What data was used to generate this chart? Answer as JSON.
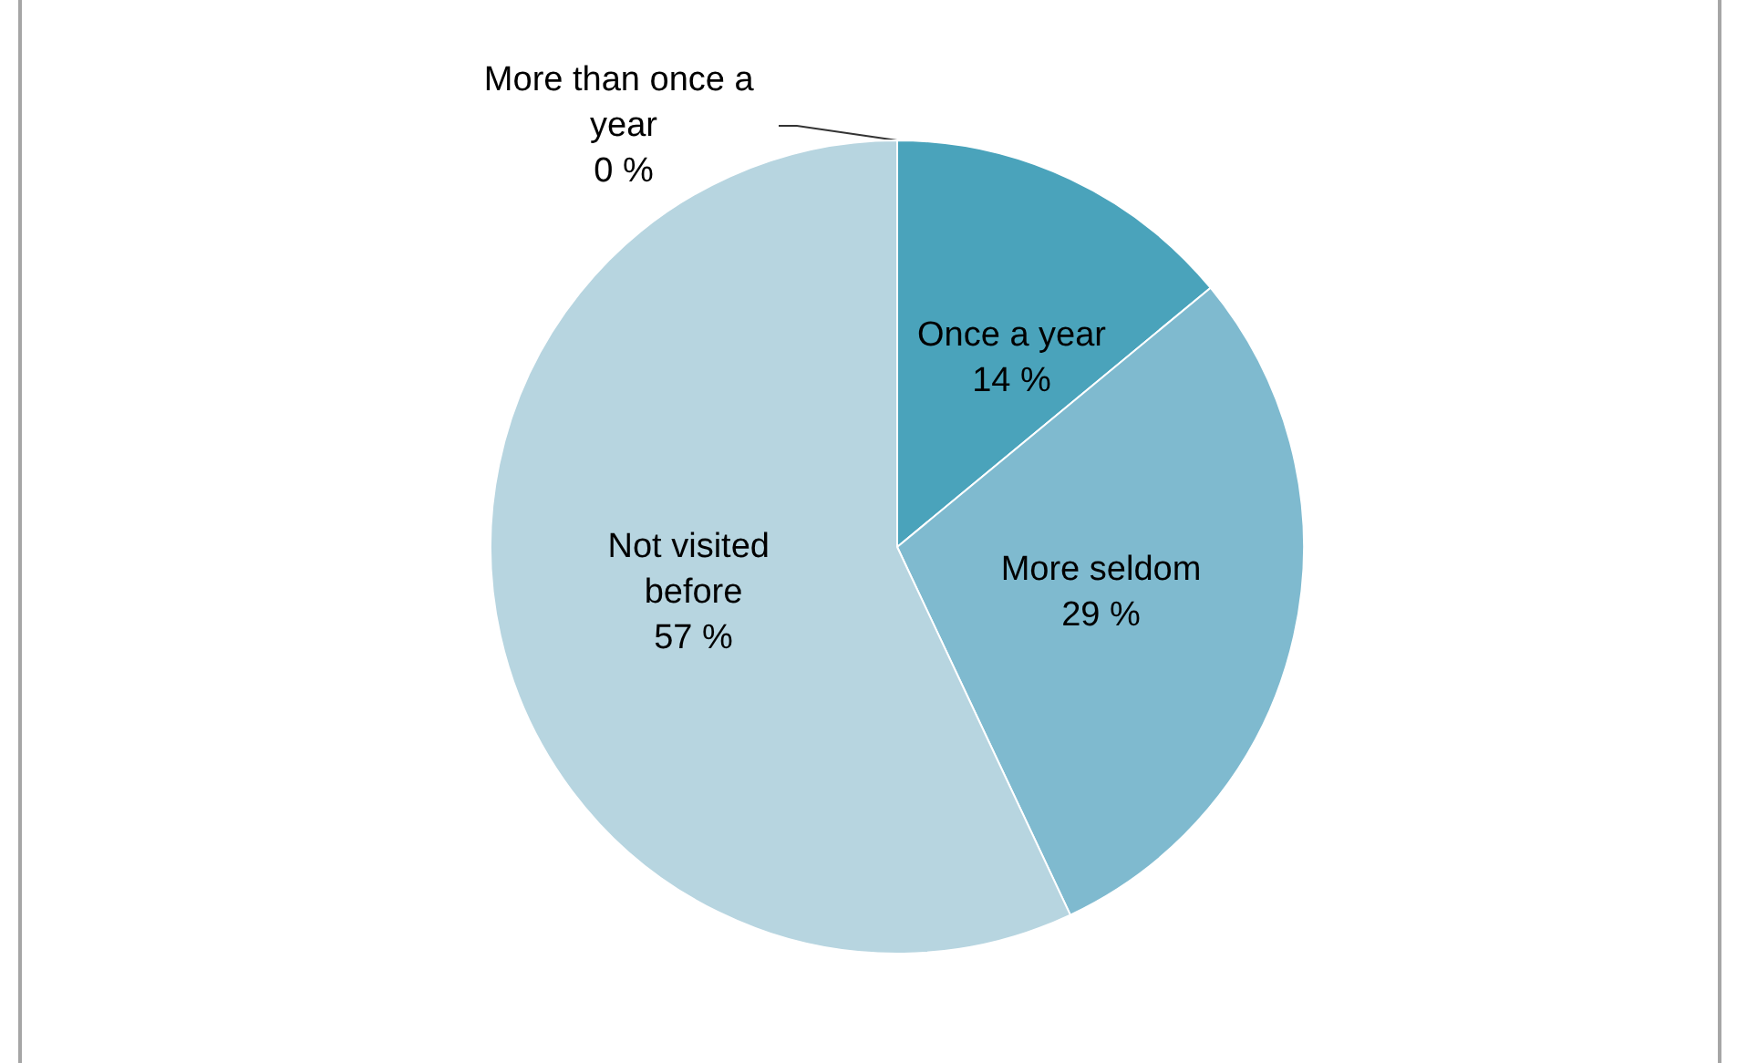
{
  "chart_data": {
    "type": "pie",
    "categories": [
      "More than once a year",
      "Once a year",
      "More seldom",
      "Not visited before"
    ],
    "values": [
      0,
      14,
      29,
      57
    ],
    "colors": [
      "#2e7f99",
      "#4aa3bb",
      "#7fbacf",
      "#b7d5e0"
    ],
    "value_labels": [
      "0 %",
      "14 %",
      "29 %",
      "57 %"
    ],
    "legend": false
  }
}
